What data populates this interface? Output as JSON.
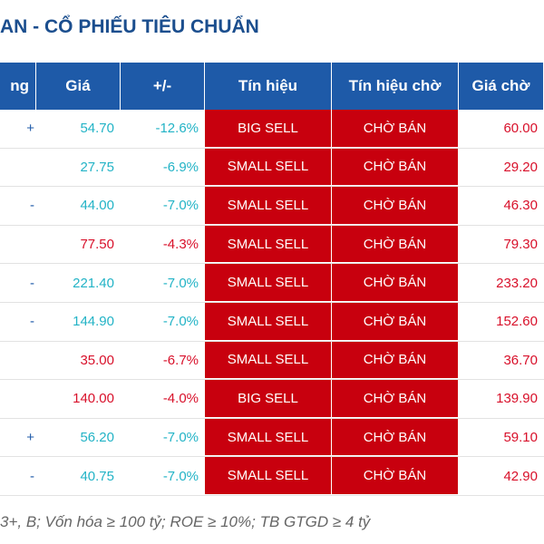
{
  "header": {
    "title": "AN - CỔ PHIẾU TIÊU CHUẨN"
  },
  "table": {
    "columns": [
      "ng",
      "Giá",
      "+/-",
      "Tín hiệu",
      "Tín hiệu chờ",
      "Giá chờ"
    ],
    "rows": [
      {
        "edge": "+",
        "cells": [
          "54.70",
          "-12.6%",
          "BIG SELL",
          "CHỜ BÁN",
          "60.00"
        ],
        "color": "#22b3c6"
      },
      {
        "cells": [
          "27.75",
          "-6.9%",
          "SMALL SELL",
          "CHỜ BÁN",
          "29.20"
        ],
        "color": "#22b3c6"
      },
      {
        "edge": "-",
        "cells": [
          "44.00",
          "-7.0%",
          "SMALL SELL",
          "CHỜ BÁN",
          "46.30"
        ],
        "color": "#22b3c6"
      },
      {
        "cells": [
          "77.50",
          "-4.3%",
          "SMALL SELL",
          "CHỜ BÁN",
          "79.30"
        ],
        "color": "#d8102a"
      },
      {
        "edge": "-",
        "cells": [
          "221.40",
          "-7.0%",
          "SMALL SELL",
          "CHỜ BÁN",
          "233.20"
        ],
        "color": "#22b3c6"
      },
      {
        "edge": "-",
        "cells": [
          "144.90",
          "-7.0%",
          "SMALL SELL",
          "CHỜ BÁN",
          "152.60"
        ],
        "color": "#22b3c6"
      },
      {
        "cells": [
          "35.00",
          "-6.7%",
          "SMALL SELL",
          "CHỜ BÁN",
          "36.70"
        ],
        "color": "#d8102a"
      },
      {
        "cells": [
          "140.00",
          "-4.0%",
          "BIG SELL",
          "CHỜ BÁN",
          "139.90"
        ],
        "color": "#d8102a"
      },
      {
        "edge": "+",
        "cells": [
          "56.20",
          "-7.0%",
          "SMALL SELL",
          "CHỜ BÁN",
          "59.10"
        ],
        "color": "#22b3c6"
      },
      {
        "edge": "-",
        "cells": [
          "40.75",
          "-7.0%",
          "SMALL SELL",
          "CHỜ BÁN",
          "42.90"
        ],
        "color": "#22b3c6"
      }
    ]
  },
  "footer": {
    "note": "3+, B; Vốn hóa ≥ 100 tỷ; ROE ≥ 10%; TB GTGD ≥ 4 tỷ"
  }
}
